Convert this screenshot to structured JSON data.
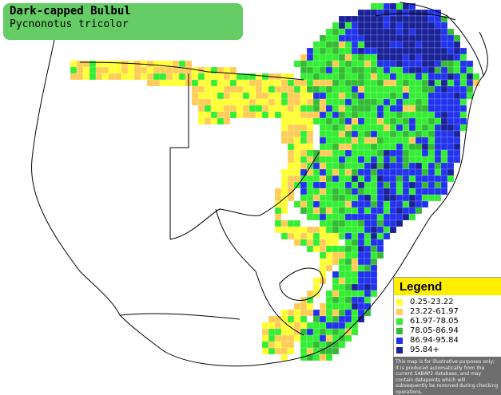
{
  "title": {
    "common_name": "Dark-capped Bulbul",
    "scientific_name": "Pycnonotus tricolor",
    "box_color": "#66cc66"
  },
  "legend": {
    "heading": "Legend",
    "heading_color": "#ffee00",
    "items": [
      {
        "label": "0.25-23.22",
        "color": "#ffff33"
      },
      {
        "label": "23.22-61.97",
        "color": "#ffcc55"
      },
      {
        "label": "61.97-78.05",
        "color": "#33ee33"
      },
      {
        "label": "78.05-86.94",
        "color": "#33bb33"
      },
      {
        "label": "86.94-95.84",
        "color": "#2233ee"
      },
      {
        "label": "95.84+",
        "color": "#1a2299"
      }
    ],
    "disclaimer": "This map is for illustrative purposes only; it is produced automatically from the current SABAP2 database, and may contain datapoints which will subsequently be removed during checking operations."
  }
}
